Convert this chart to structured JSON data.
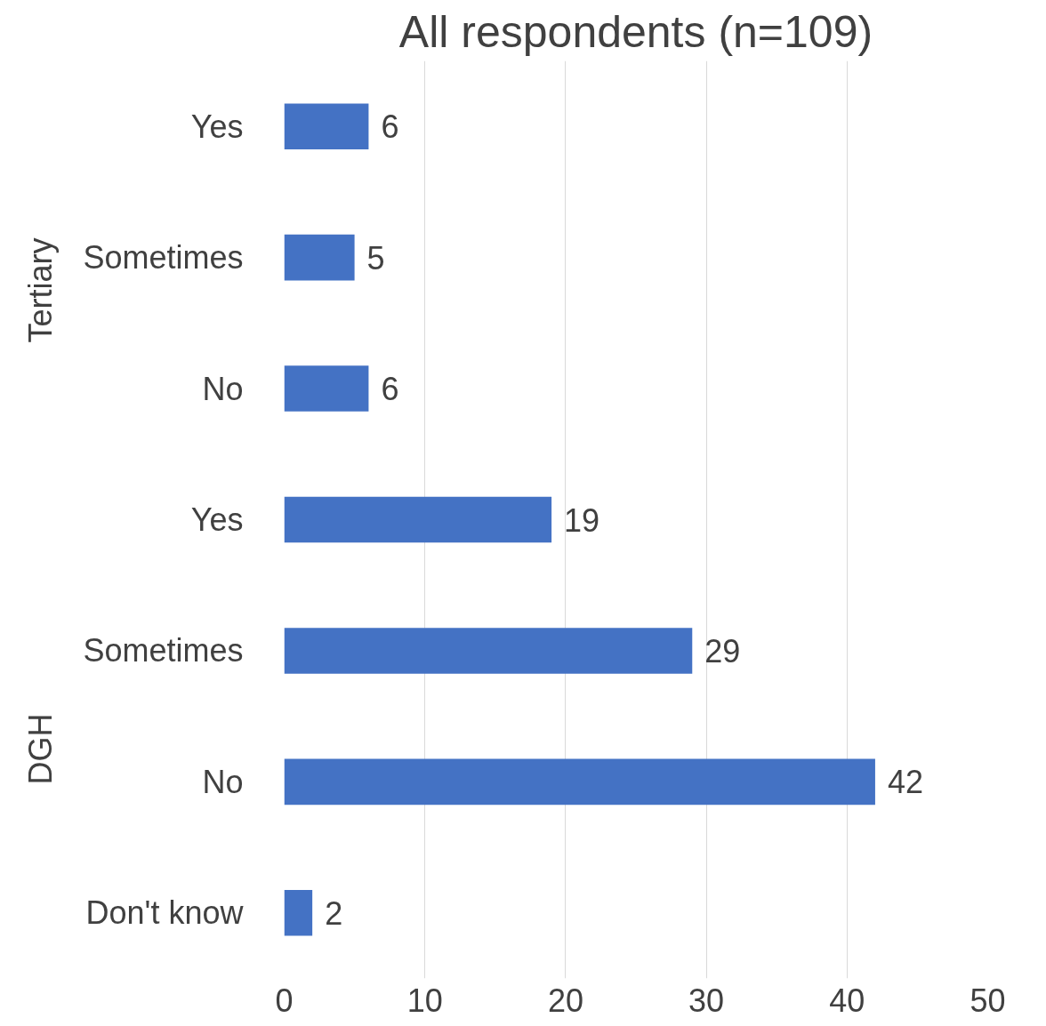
{
  "chart_data": {
    "type": "bar",
    "orientation": "horizontal",
    "title": "All respondents (n=109)",
    "categories": [
      "Yes",
      "Sometimes",
      "No",
      "Yes",
      "Sometimes",
      "No",
      "Don't know"
    ],
    "values": [
      6,
      5,
      6,
      19,
      29,
      42,
      2
    ],
    "color": "#4472c4",
    "xlim": [
      0,
      50
    ],
    "xticks": [
      0,
      10,
      20,
      30,
      40,
      50
    ],
    "grid": "x",
    "data_labels": true,
    "annotations": [
      "Tertiary",
      "DGH"
    ]
  }
}
